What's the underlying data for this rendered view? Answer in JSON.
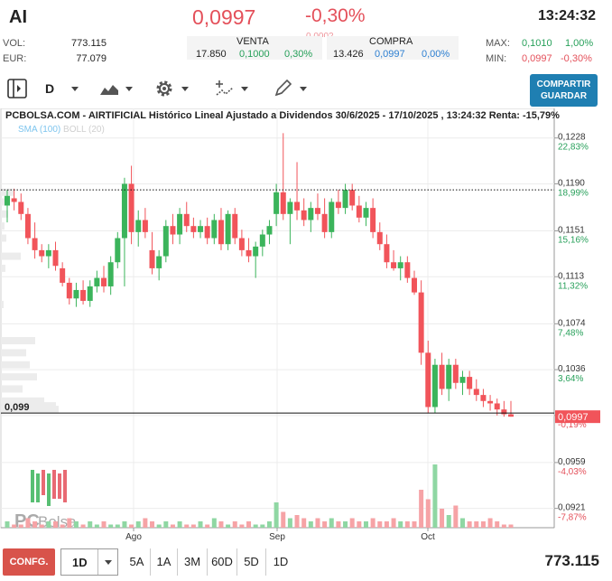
{
  "header": {
    "ticker": "AI",
    "price": "0,0997",
    "change": "-0,30%",
    "ghost_text": "0,0002",
    "time": "13:24:32"
  },
  "stats": {
    "vol_label": "VOL:",
    "vol_value": "773.115",
    "eur_label": "EUR:",
    "eur_value": "77.079",
    "max_label": "MAX:",
    "max_price": "0,1010",
    "max_pct": "1,00%",
    "min_label": "MIN:",
    "min_price": "0,0997",
    "min_pct": "-0,30%"
  },
  "sell": {
    "title": "VENTA",
    "qty": "17.850",
    "price": "0,1000",
    "pct": "0,30%"
  },
  "buy": {
    "title": "COMPRA",
    "qty": "13.426",
    "price": "0,0997",
    "pct": "0,00%"
  },
  "toolbar": {
    "period": "D",
    "share_label": "COMPARTIR",
    "save_label": "GUARDAR"
  },
  "chart": {
    "title": "PCBOLSA.COM - AIRTIFICIAL Histórico Lineal Ajustado a Dividendos 30/6/2025 - 17/10/2025 , 13:24:32 Renta: -15,79%",
    "sma_label": "SMA (100)",
    "boll_label": "BOLL (20)",
    "watermark_pc": "PC",
    "watermark_bolsa": "Bolsa",
    "ref_line_label": "0,099",
    "current_price_label": "0,0997",
    "y_axis": [
      {
        "price": "0,1228",
        "pct": "22,83%",
        "pct_color": "#27a05a"
      },
      {
        "price": "0,1190",
        "pct": "18,99%",
        "pct_color": "#27a05a"
      },
      {
        "price": "0,1151",
        "pct": "15,16%",
        "pct_color": "#27a05a"
      },
      {
        "price": "0,1113",
        "pct": "11,32%",
        "pct_color": "#27a05a"
      },
      {
        "price": "0,1074",
        "pct": "7,48%",
        "pct_color": "#27a05a"
      },
      {
        "price": "0,1036",
        "pct": "3,64%",
        "pct_color": "#27a05a"
      },
      {
        "price": "0,0998",
        "pct": "-0,19%",
        "pct_color": "#e4505a"
      },
      {
        "price": "0,0959",
        "pct": "-4,03%",
        "pct_color": "#e4505a"
      },
      {
        "price": "0,0921",
        "pct": "-7,87%",
        "pct_color": "#e4505a"
      }
    ],
    "x_axis": [
      "Ago",
      "Sep",
      "Oct"
    ]
  },
  "chart_data": {
    "type": "candlestick",
    "ylim": [
      0.0905,
      0.1245
    ],
    "reference_price": 0.1,
    "dotted_line_price": 0.1185,
    "candles": [
      {
        "o": 0.1172,
        "h": 0.1185,
        "l": 0.1158,
        "c": 0.118
      },
      {
        "o": 0.1178,
        "h": 0.1186,
        "l": 0.1168,
        "c": 0.1175
      },
      {
        "o": 0.1175,
        "h": 0.1182,
        "l": 0.116,
        "c": 0.1165
      },
      {
        "o": 0.1165,
        "h": 0.117,
        "l": 0.114,
        "c": 0.1145
      },
      {
        "o": 0.1145,
        "h": 0.1158,
        "l": 0.1128,
        "c": 0.1135
      },
      {
        "o": 0.1135,
        "h": 0.114,
        "l": 0.1125,
        "c": 0.113
      },
      {
        "o": 0.113,
        "h": 0.114,
        "l": 0.112,
        "c": 0.1135
      },
      {
        "o": 0.1135,
        "h": 0.1142,
        "l": 0.1118,
        "c": 0.1122
      },
      {
        "o": 0.112,
        "h": 0.1125,
        "l": 0.1105,
        "c": 0.1108
      },
      {
        "o": 0.1108,
        "h": 0.1112,
        "l": 0.109,
        "c": 0.1095
      },
      {
        "o": 0.1095,
        "h": 0.1108,
        "l": 0.1088,
        "c": 0.1102
      },
      {
        "o": 0.1102,
        "h": 0.111,
        "l": 0.109,
        "c": 0.1093
      },
      {
        "o": 0.1093,
        "h": 0.111,
        "l": 0.1088,
        "c": 0.1105
      },
      {
        "o": 0.1105,
        "h": 0.1118,
        "l": 0.11,
        "c": 0.1112
      },
      {
        "o": 0.1112,
        "h": 0.1122,
        "l": 0.11,
        "c": 0.1105
      },
      {
        "o": 0.1105,
        "h": 0.113,
        "l": 0.1098,
        "c": 0.1125
      },
      {
        "o": 0.1125,
        "h": 0.115,
        "l": 0.112,
        "c": 0.1145
      },
      {
        "o": 0.1145,
        "h": 0.1195,
        "l": 0.1105,
        "c": 0.119
      },
      {
        "o": 0.119,
        "h": 0.1205,
        "l": 0.114,
        "c": 0.115
      },
      {
        "o": 0.115,
        "h": 0.1168,
        "l": 0.1138,
        "c": 0.116
      },
      {
        "o": 0.116,
        "h": 0.117,
        "l": 0.1145,
        "c": 0.115
      },
      {
        "o": 0.1135,
        "h": 0.115,
        "l": 0.1115,
        "c": 0.112
      },
      {
        "o": 0.112,
        "h": 0.1135,
        "l": 0.111,
        "c": 0.113
      },
      {
        "o": 0.113,
        "h": 0.116,
        "l": 0.1125,
        "c": 0.1155
      },
      {
        "o": 0.1155,
        "h": 0.1165,
        "l": 0.114,
        "c": 0.1148
      },
      {
        "o": 0.1148,
        "h": 0.117,
        "l": 0.114,
        "c": 0.1165
      },
      {
        "o": 0.1165,
        "h": 0.1175,
        "l": 0.115,
        "c": 0.1155
      },
      {
        "o": 0.1155,
        "h": 0.1162,
        "l": 0.1145,
        "c": 0.115
      },
      {
        "o": 0.115,
        "h": 0.116,
        "l": 0.1145,
        "c": 0.1155
      },
      {
        "o": 0.1155,
        "h": 0.1162,
        "l": 0.114,
        "c": 0.1145
      },
      {
        "o": 0.1145,
        "h": 0.1165,
        "l": 0.114,
        "c": 0.116
      },
      {
        "o": 0.116,
        "h": 0.117,
        "l": 0.1135,
        "c": 0.114
      },
      {
        "o": 0.114,
        "h": 0.1168,
        "l": 0.1135,
        "c": 0.1165
      },
      {
        "o": 0.1165,
        "h": 0.117,
        "l": 0.114,
        "c": 0.1145
      },
      {
        "o": 0.1145,
        "h": 0.1152,
        "l": 0.113,
        "c": 0.1135
      },
      {
        "o": 0.1135,
        "h": 0.1145,
        "l": 0.1125,
        "c": 0.113
      },
      {
        "o": 0.113,
        "h": 0.1142,
        "l": 0.1112,
        "c": 0.1138
      },
      {
        "o": 0.1138,
        "h": 0.1152,
        "l": 0.113,
        "c": 0.1148
      },
      {
        "o": 0.1148,
        "h": 0.116,
        "l": 0.114,
        "c": 0.1155
      },
      {
        "o": 0.1165,
        "h": 0.119,
        "l": 0.1155,
        "c": 0.1183
      },
      {
        "o": 0.1183,
        "h": 0.1232,
        "l": 0.116,
        "c": 0.1165
      },
      {
        "o": 0.1165,
        "h": 0.1178,
        "l": 0.114,
        "c": 0.1175
      },
      {
        "o": 0.1175,
        "h": 0.1208,
        "l": 0.116,
        "c": 0.1168
      },
      {
        "o": 0.1168,
        "h": 0.1178,
        "l": 0.1155,
        "c": 0.116
      },
      {
        "o": 0.116,
        "h": 0.1175,
        "l": 0.115,
        "c": 0.117
      },
      {
        "o": 0.117,
        "h": 0.1182,
        "l": 0.116,
        "c": 0.1165
      },
      {
        "o": 0.1165,
        "h": 0.1178,
        "l": 0.1145,
        "c": 0.115
      },
      {
        "o": 0.115,
        "h": 0.1178,
        "l": 0.1145,
        "c": 0.1175
      },
      {
        "o": 0.1175,
        "h": 0.1185,
        "l": 0.1165,
        "c": 0.117
      },
      {
        "o": 0.117,
        "h": 0.119,
        "l": 0.1165,
        "c": 0.1185
      },
      {
        "o": 0.1185,
        "h": 0.119,
        "l": 0.1168,
        "c": 0.1172
      },
      {
        "o": 0.1172,
        "h": 0.118,
        "l": 0.1158,
        "c": 0.1162
      },
      {
        "o": 0.1162,
        "h": 0.1175,
        "l": 0.1155,
        "c": 0.117
      },
      {
        "o": 0.117,
        "h": 0.1178,
        "l": 0.1145,
        "c": 0.115
      },
      {
        "o": 0.115,
        "h": 0.1158,
        "l": 0.1135,
        "c": 0.114
      },
      {
        "o": 0.114,
        "h": 0.1148,
        "l": 0.112,
        "c": 0.1125
      },
      {
        "o": 0.1125,
        "h": 0.1135,
        "l": 0.1118,
        "c": 0.112
      },
      {
        "o": 0.112,
        "h": 0.113,
        "l": 0.111,
        "c": 0.1125
      },
      {
        "o": 0.1125,
        "h": 0.113,
        "l": 0.1108,
        "c": 0.1112
      },
      {
        "o": 0.1112,
        "h": 0.1118,
        "l": 0.1098,
        "c": 0.11
      },
      {
        "o": 0.11,
        "h": 0.111,
        "l": 0.104,
        "c": 0.105
      },
      {
        "o": 0.105,
        "h": 0.106,
        "l": 0.1,
        "c": 0.1005
      },
      {
        "o": 0.1005,
        "h": 0.1045,
        "l": 0.1,
        "c": 0.104
      },
      {
        "o": 0.104,
        "h": 0.105,
        "l": 0.1015,
        "c": 0.102
      },
      {
        "o": 0.102,
        "h": 0.1045,
        "l": 0.101,
        "c": 0.104
      },
      {
        "o": 0.104,
        "h": 0.1045,
        "l": 0.102,
        "c": 0.1025
      },
      {
        "o": 0.1025,
        "h": 0.1035,
        "l": 0.1015,
        "c": 0.103
      },
      {
        "o": 0.103,
        "h": 0.1035,
        "l": 0.1015,
        "c": 0.102
      },
      {
        "o": 0.102,
        "h": 0.1028,
        "l": 0.101,
        "c": 0.1015
      },
      {
        "o": 0.1015,
        "h": 0.102,
        "l": 0.1005,
        "c": 0.101
      },
      {
        "o": 0.101,
        "h": 0.1015,
        "l": 0.1002,
        "c": 0.1008
      },
      {
        "o": 0.1008,
        "h": 0.1012,
        "l": 0.0998,
        "c": 0.1003
      },
      {
        "o": 0.1003,
        "h": 0.101,
        "l": 0.0997,
        "c": 0.0999
      },
      {
        "o": 0.0999,
        "h": 0.101,
        "l": 0.0997,
        "c": 0.0997
      }
    ],
    "volumes": [
      2,
      1,
      1,
      3,
      2,
      1,
      2,
      2,
      1,
      3,
      2,
      1,
      2,
      1,
      2,
      1,
      1,
      2,
      1,
      2,
      3,
      2,
      1,
      2,
      1,
      2,
      1,
      1,
      2,
      1,
      3,
      2,
      1,
      2,
      1,
      2,
      1,
      1,
      2,
      8,
      5,
      3,
      4,
      3,
      2,
      3,
      2,
      3,
      2,
      2,
      3,
      2,
      2,
      3,
      2,
      2,
      3,
      2,
      2,
      2,
      12,
      9,
      20,
      6,
      4,
      7,
      3,
      2,
      2,
      2,
      3,
      2,
      1,
      1
    ],
    "volume_profile": [
      {
        "price": 0.1183,
        "size": 14
      },
      {
        "price": 0.1175,
        "size": 10
      },
      {
        "price": 0.1165,
        "size": 8
      },
      {
        "price": 0.1155,
        "size": 4
      },
      {
        "price": 0.1145,
        "size": 6
      },
      {
        "price": 0.113,
        "size": 22
      },
      {
        "price": 0.112,
        "size": 5
      },
      {
        "price": 0.109,
        "size": 3
      },
      {
        "price": 0.106,
        "size": 38
      },
      {
        "price": 0.105,
        "size": 28
      },
      {
        "price": 0.104,
        "size": 32
      },
      {
        "price": 0.103,
        "size": 40
      },
      {
        "price": 0.102,
        "size": 24
      },
      {
        "price": 0.101,
        "size": 48
      },
      {
        "price": 0.1003,
        "size": 64
      }
    ]
  },
  "bottom": {
    "config_label": "CONFG.",
    "range_value": "1D",
    "ranges": [
      "5A",
      "1A",
      "3M",
      "60D",
      "5D",
      "1D"
    ],
    "volume_total": "773.115"
  }
}
